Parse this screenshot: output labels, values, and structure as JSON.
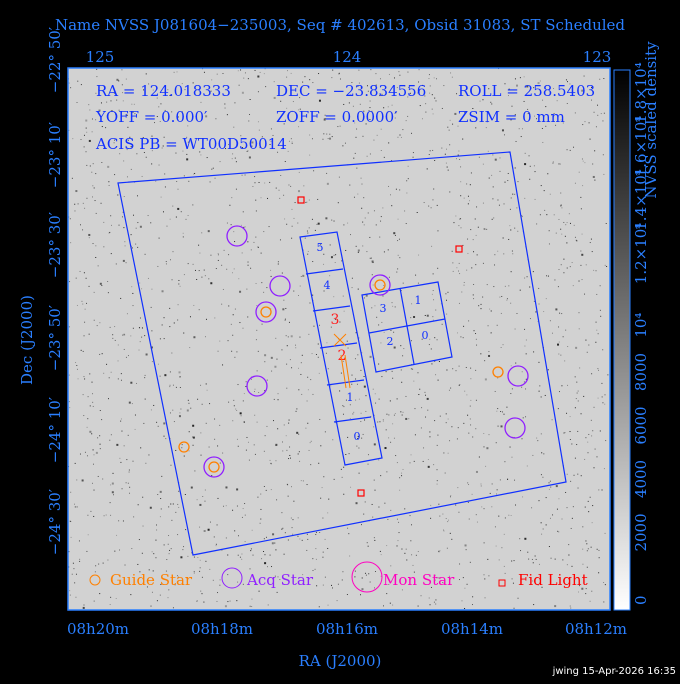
{
  "title": "Name NVSS J081604−235003, Seq # 402613, Obsid 31083, ST Scheduled",
  "top_axis_ticks": [
    "125",
    "124",
    "123"
  ],
  "bottom_axis_ticks": [
    "08h20m",
    "08h18m",
    "08h16m",
    "08h14m",
    "08h12m"
  ],
  "left_axis_ticks": [
    "−22° 50′",
    "−23° 10′",
    "−23° 30′",
    "−23° 50′",
    "−24° 10′",
    "−24° 30′"
  ],
  "x_label": "RA (J2000)",
  "y_label": "Dec (J2000)",
  "info": [
    "RA = 124.018333",
    "DEC = −23.834556",
    "ROLL = 258.5403",
    "YOFF = 0.000′",
    "ZOFF = 0.0000′",
    "ZSIM = 0 mm",
    "ACIS PB = WT00D50014"
  ],
  "acis_s_labels": [
    "5",
    "4",
    "3",
    "2",
    "1",
    "0"
  ],
  "acis_i_labels": [
    "3",
    "1",
    "2",
    "0"
  ],
  "legend": [
    "Guide Star",
    "Acq Star",
    "Mon Star",
    "Fid Light"
  ],
  "colorbar_label": "NVSS scaled density",
  "colorbar_ticks": [
    "0",
    "2000",
    "4000",
    "6000",
    "8000",
    "10⁴",
    "1.2×10⁴",
    "1.4×10⁴",
    "1.6×10⁴",
    "1.8×10⁴"
  ],
  "footer": "jwing 15-Apr-2026 16:35"
}
